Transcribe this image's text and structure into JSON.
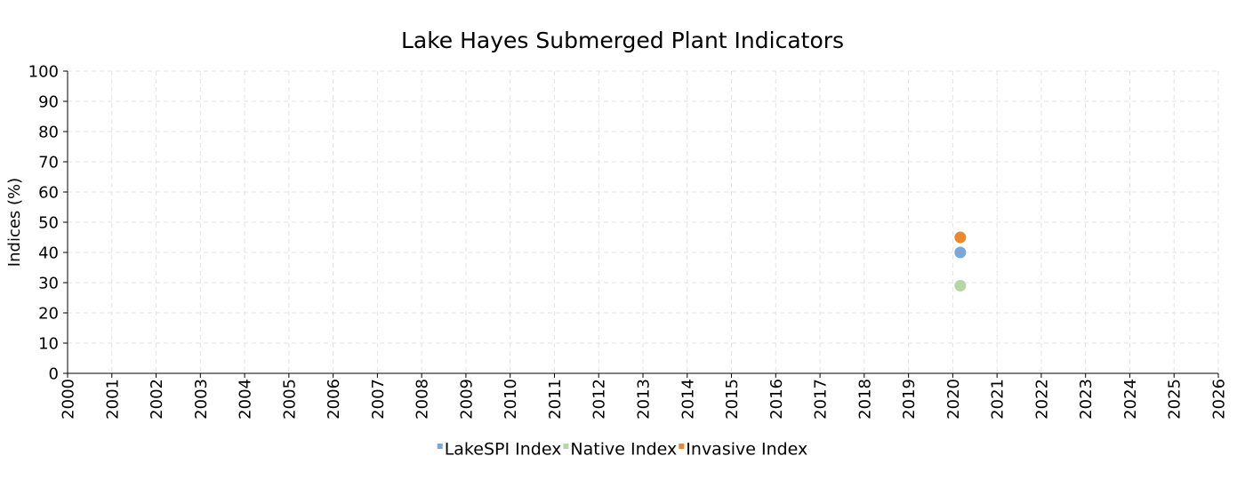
{
  "chart_data": {
    "type": "scatter",
    "title": "Lake Hayes Submerged Plant Indicators",
    "xlabel": "",
    "ylabel": "Indices (%)",
    "xlim": [
      2000,
      2026
    ],
    "ylim": [
      0,
      100
    ],
    "x_ticks": [
      "2000",
      "2001",
      "2002",
      "2003",
      "2004",
      "2005",
      "2006",
      "2007",
      "2008",
      "2009",
      "2010",
      "2011",
      "2012",
      "2013",
      "2014",
      "2015",
      "2016",
      "2017",
      "2018",
      "2019",
      "2020",
      "2021",
      "2022",
      "2023",
      "2024",
      "2025",
      "2026"
    ],
    "y_ticks": [
      "0",
      "10",
      "20",
      "30",
      "40",
      "50",
      "60",
      "70",
      "80",
      "90",
      "100"
    ],
    "grid": true,
    "legend_position": "bottom-center",
    "series": [
      {
        "name": "LakeSPI Index",
        "color": "#7ba7d7",
        "points": [
          {
            "x": 2020.17,
            "y": 40
          }
        ]
      },
      {
        "name": "Native Index",
        "color": "#b5d6a5",
        "points": [
          {
            "x": 2020.17,
            "y": 29
          }
        ]
      },
      {
        "name": "Invasive Index",
        "color": "#e8892e",
        "points": [
          {
            "x": 2020.17,
            "y": 45
          }
        ]
      }
    ]
  }
}
